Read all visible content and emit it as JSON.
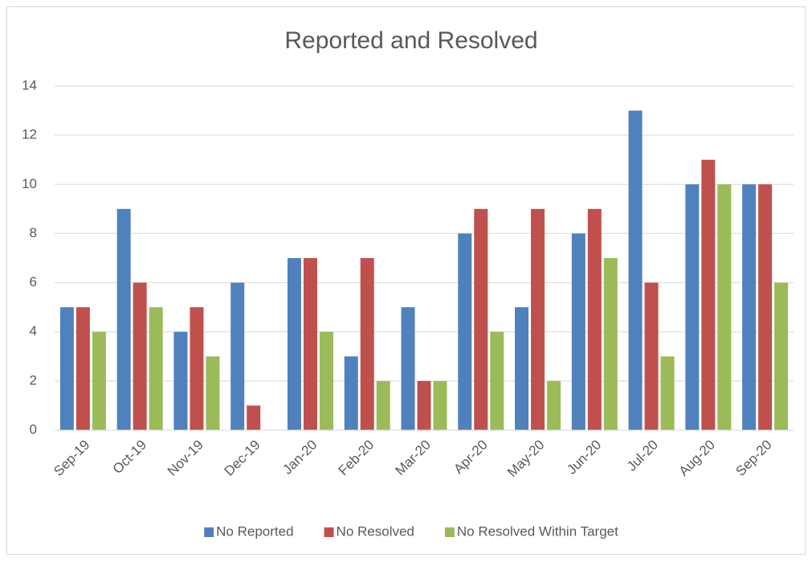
{
  "chart_data": {
    "type": "bar",
    "title": "Reported and Resolved",
    "categories": [
      "Sep-19",
      "Oct-19",
      "Nov-19",
      "Dec-19",
      "Jan-20",
      "Feb-20",
      "Mar-20",
      "Apr-20",
      "May-20",
      "Jun-20",
      "Jul-20",
      "Aug-20",
      "Sep-20"
    ],
    "series": [
      {
        "name": "No Reported",
        "color": "#4f81bd",
        "values": [
          5,
          9,
          4,
          6,
          7,
          3,
          5,
          8,
          5,
          8,
          13,
          10,
          10
        ]
      },
      {
        "name": "No Resolved",
        "color": "#c0504d",
        "values": [
          5,
          6,
          5,
          1,
          7,
          7,
          2,
          9,
          9,
          9,
          6,
          11,
          10
        ]
      },
      {
        "name": "No Resolved Within Target",
        "color": "#9bbb59",
        "values": [
          4,
          5,
          3,
          0,
          4,
          2,
          2,
          4,
          2,
          7,
          3,
          10,
          6
        ]
      }
    ],
    "ylim": [
      0,
      14
    ],
    "yticks": [
      0,
      2,
      4,
      6,
      8,
      10,
      12,
      14
    ],
    "grid": true,
    "legend": "bottom"
  }
}
